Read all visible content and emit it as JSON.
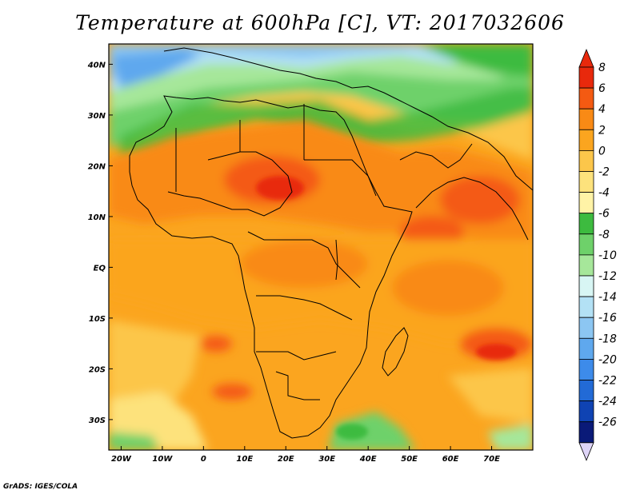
{
  "title": "Temperature at 600hPa [C], VT: 2017032606",
  "credit": "GrADS: IGES/COLA",
  "map": {
    "lon_range": [
      -23,
      80
    ],
    "lat_range": [
      -36,
      44
    ],
    "lon_ticks": [
      {
        "lon": -20,
        "label": "20W"
      },
      {
        "lon": -10,
        "label": "10W"
      },
      {
        "lon": 0,
        "label": "0"
      },
      {
        "lon": 10,
        "label": "10E"
      },
      {
        "lon": 20,
        "label": "20E"
      },
      {
        "lon": 30,
        "label": "30E"
      },
      {
        "lon": 40,
        "label": "40E"
      },
      {
        "lon": 50,
        "label": "50E"
      },
      {
        "lon": 60,
        "label": "60E"
      },
      {
        "lon": 70,
        "label": "70E"
      }
    ],
    "lat_ticks": [
      {
        "lat": 40,
        "label": "40N"
      },
      {
        "lat": 30,
        "label": "30N"
      },
      {
        "lat": 20,
        "label": "20N"
      },
      {
        "lat": 10,
        "label": "10N"
      },
      {
        "lat": 0,
        "label": "EQ"
      },
      {
        "lat": -10,
        "label": "10S"
      },
      {
        "lat": -20,
        "label": "20S"
      },
      {
        "lat": -30,
        "label": "30S"
      }
    ]
  },
  "colorbar": {
    "labels": [
      "8",
      "6",
      "4",
      "2",
      "0",
      "-2",
      "-4",
      "-6",
      "-8",
      "-10",
      "-12",
      "-14",
      "-16",
      "-18",
      "-20",
      "-22",
      "-24",
      "-26"
    ],
    "colors": [
      "#e8290c",
      "#f45a12",
      "#f98a15",
      "#fba51f",
      "#fcc64a",
      "#fde27c",
      "#fff3a6",
      "#3dbb3f",
      "#6ed16a",
      "#a6e79a",
      "#d8f6f4",
      "#b3e1f5",
      "#8cc6f2",
      "#5fa8ee",
      "#3d8bea",
      "#226ad6",
      "#0f43b3",
      "#0a1a78"
    ],
    "top_arrow_color": "#e8290c",
    "bottom_arrow_color": "#ded4f7"
  }
}
